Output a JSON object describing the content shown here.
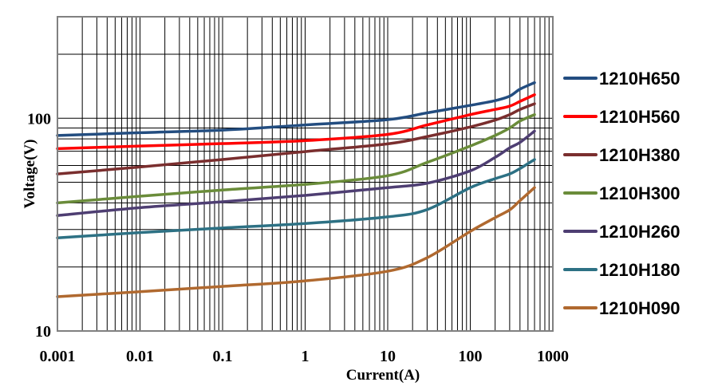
{
  "chart_data": {
    "type": "line",
    "title": "",
    "xlabel": "Current(A)",
    "ylabel": "Voltage(V)",
    "xscale": "log",
    "yscale": "log",
    "xlim": [
      0.001,
      1000
    ],
    "ylim": [
      10,
      300
    ],
    "grid": true,
    "legend_placement": "right",
    "x_tick_labels": [
      "0.001",
      "0.01",
      "0.1",
      "1",
      "10",
      "100",
      "1000"
    ],
    "y_tick_labels": [
      "10",
      "100"
    ],
    "x": [
      0.001,
      0.01,
      0.1,
      1,
      10,
      30,
      100,
      200,
      300,
      400,
      600
    ],
    "series": [
      {
        "name": "1210H650",
        "color": "#234d80",
        "values": [
          83,
          85.5,
          88,
          93,
          98.5,
          106,
          115,
          121,
          127,
          137,
          147
        ]
      },
      {
        "name": "1210H560",
        "color": "#ff0000",
        "values": [
          72,
          74,
          76,
          78.5,
          84,
          93,
          104,
          110,
          114,
          120,
          129
        ]
      },
      {
        "name": "1210H380",
        "color": "#7a2e2e",
        "values": [
          54.7,
          59,
          64,
          69.7,
          75.8,
          82,
          91,
          98,
          104,
          110,
          117
        ]
      },
      {
        "name": "1210H300",
        "color": "#6a8c3a",
        "values": [
          40,
          43,
          46,
          48.9,
          53.7,
          62,
          74,
          83,
          90,
          97,
          104
        ]
      },
      {
        "name": "1210H260",
        "color": "#4e3e72",
        "values": [
          34.9,
          38,
          40.5,
          43.4,
          47.2,
          49.5,
          56.6,
          65.5,
          72.6,
          77,
          87
        ]
      },
      {
        "name": "1210H180",
        "color": "#2d7184",
        "values": [
          27.4,
          29,
          30.5,
          32,
          34.4,
          37.2,
          47.2,
          52,
          54.7,
          58,
          64
        ]
      },
      {
        "name": "1210H090",
        "color": "#b0692f",
        "values": [
          14.5,
          15.3,
          16.2,
          17.2,
          19.1,
          22.1,
          29.4,
          34.1,
          37.1,
          41,
          47.2
        ]
      }
    ]
  }
}
